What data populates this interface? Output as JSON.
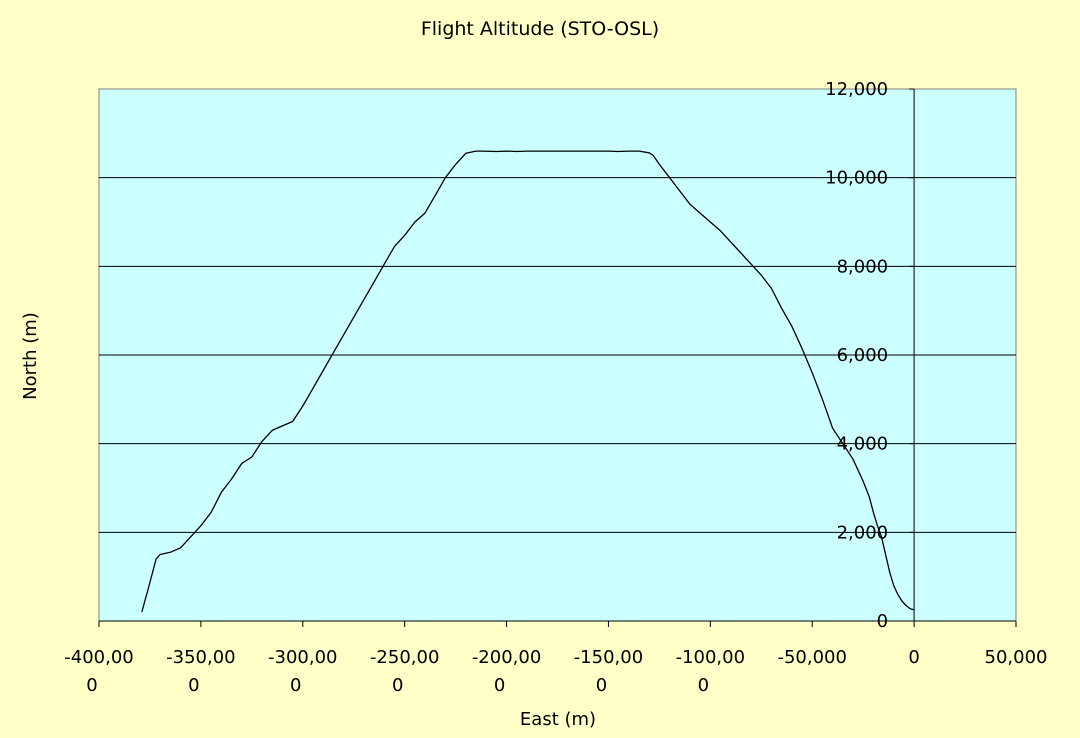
{
  "chart_data": {
    "type": "line",
    "title": "Flight Altitude (STO-OSL)",
    "xlabel": "East (m)",
    "ylabel": "North (m)",
    "xlim": [
      -400000,
      50000
    ],
    "ylim": [
      0,
      12000
    ],
    "x_ticks": [
      {
        "value": -400000,
        "label": [
          "-400,00",
          "0"
        ]
      },
      {
        "value": -350000,
        "label": [
          "-350,00",
          "0"
        ]
      },
      {
        "value": -300000,
        "label": [
          "-300,00",
          "0"
        ]
      },
      {
        "value": -250000,
        "label": [
          "-250,00",
          "0"
        ]
      },
      {
        "value": -200000,
        "label": [
          "-200,00",
          "0"
        ]
      },
      {
        "value": -150000,
        "label": [
          "-150,00",
          "0"
        ]
      },
      {
        "value": -100000,
        "label": [
          "-100,00",
          "0"
        ]
      },
      {
        "value": -50000,
        "label": [
          "-50,000"
        ]
      },
      {
        "value": 0,
        "label": [
          "0"
        ]
      },
      {
        "value": 50000,
        "label": [
          "50,000"
        ]
      }
    ],
    "y_ticks": [
      {
        "value": 0,
        "label": "0"
      },
      {
        "value": 2000,
        "label": "2,000"
      },
      {
        "value": 4000,
        "label": "4,000"
      },
      {
        "value": 6000,
        "label": "6,000"
      },
      {
        "value": 8000,
        "label": "8,000"
      },
      {
        "value": 10000,
        "label": "10,000"
      },
      {
        "value": 12000,
        "label": "12,000"
      }
    ],
    "grid": "horizontal",
    "colors": {
      "background": "#ffffc8",
      "plot_area": "#ccffff",
      "line": "#000000"
    },
    "series": [
      {
        "x": [
          -379000,
          -376000,
          -372000,
          -370000,
          -365000,
          -360000,
          -355000,
          -350000,
          -345000,
          -340000,
          -335000,
          -330000,
          -325000,
          -320000,
          -315000,
          -310000,
          -305000,
          -300000,
          -295000,
          -290000,
          -285000,
          -280000,
          -275000,
          -270000,
          -265000,
          -260000,
          -255000,
          -250000,
          -245000,
          -240000,
          -235000,
          -230000,
          -225000,
          -220000,
          -215000,
          -212000,
          -205000,
          -200000,
          -195000,
          -190000,
          -180000,
          -170000,
          -160000,
          -150000,
          -145000,
          -140000,
          -135000,
          -130000,
          -128000,
          -125000,
          -120000,
          -115000,
          -110000,
          -105000,
          -100000,
          -95000,
          -90000,
          -85000,
          -80000,
          -75000,
          -70000,
          -65000,
          -60000,
          -55000,
          -50000,
          -45000,
          -40000,
          -35000,
          -30000,
          -25000,
          -22000,
          -20000,
          -18000,
          -16000,
          -14000,
          -12000,
          -10000,
          -8000,
          -6000,
          -4000,
          -2000,
          0
        ],
        "y": [
          200,
          700,
          1400,
          1500,
          1550,
          1650,
          1900,
          2150,
          2450,
          2900,
          3200,
          3550,
          3700,
          4050,
          4300,
          4400,
          4500,
          4850,
          5250,
          5650,
          6050,
          6450,
          6850,
          7250,
          7650,
          8050,
          8450,
          8700,
          9000,
          9200,
          9600,
          10000,
          10300,
          10550,
          10600,
          10600,
          10590,
          10600,
          10590,
          10600,
          10600,
          10600,
          10600,
          10600,
          10590,
          10600,
          10600,
          10560,
          10500,
          10300,
          10000,
          9700,
          9400,
          9200,
          9000,
          8800,
          8550,
          8300,
          8050,
          7800,
          7500,
          7050,
          6650,
          6150,
          5600,
          5000,
          4350,
          4000,
          3650,
          3150,
          2800,
          2450,
          2150,
          1900,
          1500,
          1100,
          800,
          600,
          450,
          350,
          280,
          250
        ]
      }
    ]
  }
}
